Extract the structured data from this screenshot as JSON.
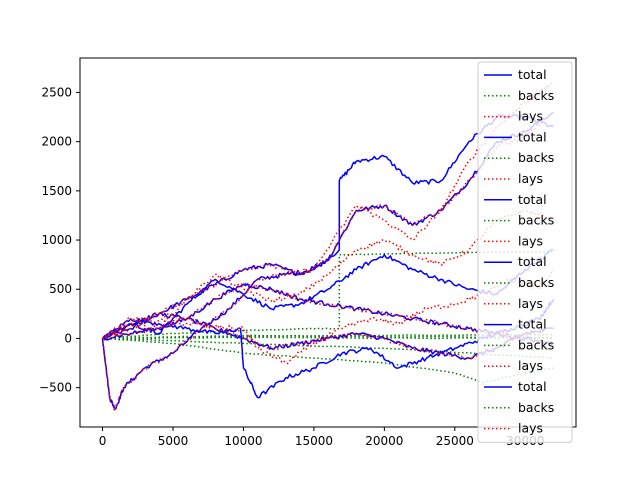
{
  "chart_data": {
    "type": "line",
    "title": "",
    "xlabel": "",
    "ylabel": "",
    "xlim": [
      -1600,
      33600
    ],
    "ylim": [
      -900,
      2850
    ],
    "grid": false,
    "legend_placement": "right",
    "x_ticks": [
      0,
      5000,
      10000,
      15000,
      20000,
      25000,
      30000
    ],
    "y_ticks": [
      -500,
      0,
      500,
      1000,
      1500,
      2000,
      2500
    ],
    "legend": [
      {
        "label": "total",
        "color": "#0000ff",
        "style": "solid"
      },
      {
        "label": "backs",
        "color": "#008000",
        "style": "dotted"
      },
      {
        "label": "lays",
        "color": "#ff0000",
        "style": "dotted"
      },
      {
        "label": "total",
        "color": "#0000ff",
        "style": "solid"
      },
      {
        "label": "backs",
        "color": "#008000",
        "style": "dotted"
      },
      {
        "label": "lays",
        "color": "#ff0000",
        "style": "dotted"
      },
      {
        "label": "total",
        "color": "#0000ff",
        "style": "solid"
      },
      {
        "label": "backs",
        "color": "#008000",
        "style": "dotted"
      },
      {
        "label": "lays",
        "color": "#ff0000",
        "style": "dotted"
      },
      {
        "label": "total",
        "color": "#0000ff",
        "style": "solid"
      },
      {
        "label": "backs",
        "color": "#008000",
        "style": "dotted"
      },
      {
        "label": "lays",
        "color": "#ff0000",
        "style": "dotted"
      },
      {
        "label": "total",
        "color": "#0000ff",
        "style": "solid"
      },
      {
        "label": "backs",
        "color": "#008000",
        "style": "dotted"
      },
      {
        "label": "lays",
        "color": "#ff0000",
        "style": "dotted"
      },
      {
        "label": "total",
        "color": "#0000ff",
        "style": "solid"
      },
      {
        "label": "backs",
        "color": "#008000",
        "style": "dotted"
      },
      {
        "label": "lays",
        "color": "#ff0000",
        "style": "dotted"
      }
    ],
    "series": [
      {
        "kind": "total",
        "color": "#0000ff",
        "style": "solid",
        "x": [
          0,
          500,
          900,
          1500,
          3000,
          5000,
          7000,
          9000,
          11000,
          13000,
          15000,
          16800,
          16800,
          18000,
          20000,
          22000,
          24000,
          26000,
          28000,
          30000,
          32000
        ],
        "y": [
          0,
          -600,
          -720,
          -500,
          -300,
          -150,
          100,
          300,
          600,
          650,
          700,
          900,
          1600,
          1800,
          1850,
          1580,
          1600,
          2000,
          2250,
          2250,
          2150
        ]
      },
      {
        "kind": "backs",
        "color": "#008000",
        "style": "dotted",
        "x": [
          0,
          5000,
          10000,
          15000,
          16800,
          16800,
          20000,
          25000,
          30000,
          32000
        ],
        "y": [
          0,
          50,
          80,
          100,
          100,
          850,
          860,
          870,
          880,
          880
        ]
      },
      {
        "kind": "lays",
        "color": "#ff0000",
        "style": "dotted",
        "x": [
          0,
          500,
          900,
          1500,
          3000,
          5000,
          7000,
          9000,
          11000,
          13000,
          15000,
          18000,
          20000,
          22000,
          24000,
          26000,
          28000,
          30000,
          32000
        ],
        "y": [
          0,
          -600,
          -720,
          -500,
          -300,
          -150,
          100,
          300,
          600,
          650,
          700,
          1350,
          1200,
          1000,
          1300,
          1800,
          2150,
          2400,
          2600
        ]
      },
      {
        "kind": "total",
        "color": "#0000ff",
        "style": "solid",
        "x": [
          0,
          2000,
          4000,
          6000,
          8000,
          10000,
          12000,
          14000,
          16000,
          18000,
          20000,
          22000,
          24000,
          26000,
          28000,
          30000,
          32000
        ],
        "y": [
          0,
          100,
          250,
          400,
          550,
          700,
          750,
          650,
          800,
          1300,
          1350,
          1150,
          1300,
          1600,
          2000,
          2100,
          2300
        ]
      },
      {
        "kind": "backs",
        "color": "#008000",
        "style": "dotted",
        "x": [
          0,
          10000,
          20000,
          32000
        ],
        "y": [
          0,
          20,
          30,
          40
        ]
      },
      {
        "kind": "lays",
        "color": "#ff0000",
        "style": "dotted",
        "x": [
          0,
          2000,
          4000,
          6000,
          8000,
          10000,
          12000,
          14000,
          16000,
          18000,
          20000,
          22000,
          24000,
          26000,
          28000,
          30000,
          32000
        ],
        "y": [
          0,
          100,
          250,
          400,
          550,
          700,
          750,
          650,
          800,
          1300,
          1350,
          1150,
          1300,
          1600,
          1950,
          2050,
          2300
        ]
      },
      {
        "kind": "total",
        "color": "#0000ff",
        "style": "solid",
        "x": [
          0,
          2000,
          4000,
          6000,
          8000,
          10000,
          12000,
          14000,
          16000,
          18000,
          20000,
          22000,
          24000,
          26000,
          28000,
          30000,
          32000
        ],
        "y": [
          0,
          150,
          50,
          350,
          600,
          450,
          300,
          350,
          500,
          700,
          850,
          700,
          600,
          500,
          450,
          700,
          900
        ]
      },
      {
        "kind": "backs",
        "color": "#008000",
        "style": "dotted",
        "x": [
          0,
          10000,
          20000,
          32000
        ],
        "y": [
          0,
          -50,
          -100,
          -200
        ]
      },
      {
        "kind": "lays",
        "color": "#ff0000",
        "style": "dotted",
        "x": [
          0,
          2000,
          4000,
          6000,
          8000,
          10000,
          12000,
          14000,
          16000,
          18000,
          20000,
          22000,
          24000,
          26000,
          28000,
          30000,
          32000
        ],
        "y": [
          0,
          150,
          100,
          400,
          650,
          500,
          380,
          450,
          650,
          900,
          1000,
          850,
          750,
          900,
          1200,
          1300,
          1200
        ]
      },
      {
        "kind": "total",
        "color": "#0000ff",
        "style": "solid",
        "x": [
          0,
          2000,
          4000,
          6000,
          8000,
          9800,
          10000,
          11000,
          13000,
          15000,
          17000,
          19000,
          21000,
          23000,
          25000,
          27000,
          29000,
          31000,
          32000
        ],
        "y": [
          0,
          200,
          150,
          100,
          50,
          100,
          -300,
          -600,
          -400,
          -300,
          -150,
          -100,
          -300,
          -200,
          -100,
          0,
          100,
          200,
          400
        ]
      },
      {
        "kind": "backs",
        "color": "#008000",
        "style": "dotted",
        "x": [
          0,
          5000,
          10000,
          15000,
          20000,
          25000,
          27000,
          30000,
          32000
        ],
        "y": [
          0,
          -50,
          -150,
          -200,
          -250,
          -350,
          -450,
          -350,
          -300
        ]
      },
      {
        "kind": "lays",
        "color": "#ff0000",
        "style": "dotted",
        "x": [
          0,
          2000,
          4000,
          6000,
          8000,
          10000,
          11000,
          13000,
          15000,
          17000,
          19000,
          21000,
          23000,
          25000,
          27000,
          29000,
          31000,
          32000
        ],
        "y": [
          0,
          200,
          180,
          150,
          120,
          100,
          -100,
          -250,
          -50,
          100,
          200,
          150,
          300,
          350,
          450,
          600,
          500,
          700
        ]
      },
      {
        "kind": "total",
        "color": "#0000ff",
        "style": "solid",
        "x": [
          0,
          2000,
          4000,
          6000,
          8000,
          10000,
          12000,
          14000,
          16000,
          18000,
          20000,
          22000,
          24000,
          26000,
          28000,
          30000,
          32000
        ],
        "y": [
          0,
          150,
          250,
          200,
          100,
          0,
          -100,
          -50,
          0,
          50,
          0,
          -100,
          -150,
          -200,
          -100,
          50,
          100
        ]
      },
      {
        "kind": "backs",
        "color": "#008000",
        "style": "dotted",
        "x": [
          0,
          10000,
          20000,
          32000
        ],
        "y": [
          0,
          10,
          5,
          0
        ]
      },
      {
        "kind": "lays",
        "color": "#ff0000",
        "style": "dotted",
        "x": [
          0,
          2000,
          4000,
          6000,
          8000,
          10000,
          12000,
          14000,
          16000,
          18000,
          20000,
          22000,
          24000,
          26000,
          28000,
          30000,
          32000
        ],
        "y": [
          0,
          150,
          250,
          200,
          100,
          0,
          -100,
          -50,
          0,
          50,
          0,
          -100,
          -150,
          -200,
          -100,
          50,
          100
        ]
      },
      {
        "kind": "total",
        "color": "#0000ff",
        "style": "solid",
        "x": [
          0,
          2000,
          4000,
          6000,
          8000,
          10000,
          12000,
          14000,
          16000,
          18000,
          20000,
          22000,
          24000,
          26000,
          28000,
          30000,
          32000
        ],
        "y": [
          0,
          50,
          100,
          200,
          400,
          550,
          500,
          400,
          350,
          300,
          250,
          200,
          150,
          100,
          50,
          0,
          -50
        ]
      },
      {
        "kind": "backs",
        "color": "#008000",
        "style": "dotted",
        "x": [
          0,
          10000,
          20000,
          32000
        ],
        "y": [
          0,
          30,
          20,
          10
        ]
      },
      {
        "kind": "lays",
        "color": "#ff0000",
        "style": "dotted",
        "x": [
          0,
          2000,
          4000,
          6000,
          8000,
          10000,
          12000,
          14000,
          16000,
          18000,
          20000,
          22000,
          24000,
          26000,
          28000,
          30000,
          32000
        ],
        "y": [
          0,
          50,
          100,
          200,
          400,
          550,
          500,
          400,
          350,
          300,
          250,
          200,
          150,
          100,
          50,
          0,
          -50
        ]
      }
    ]
  }
}
